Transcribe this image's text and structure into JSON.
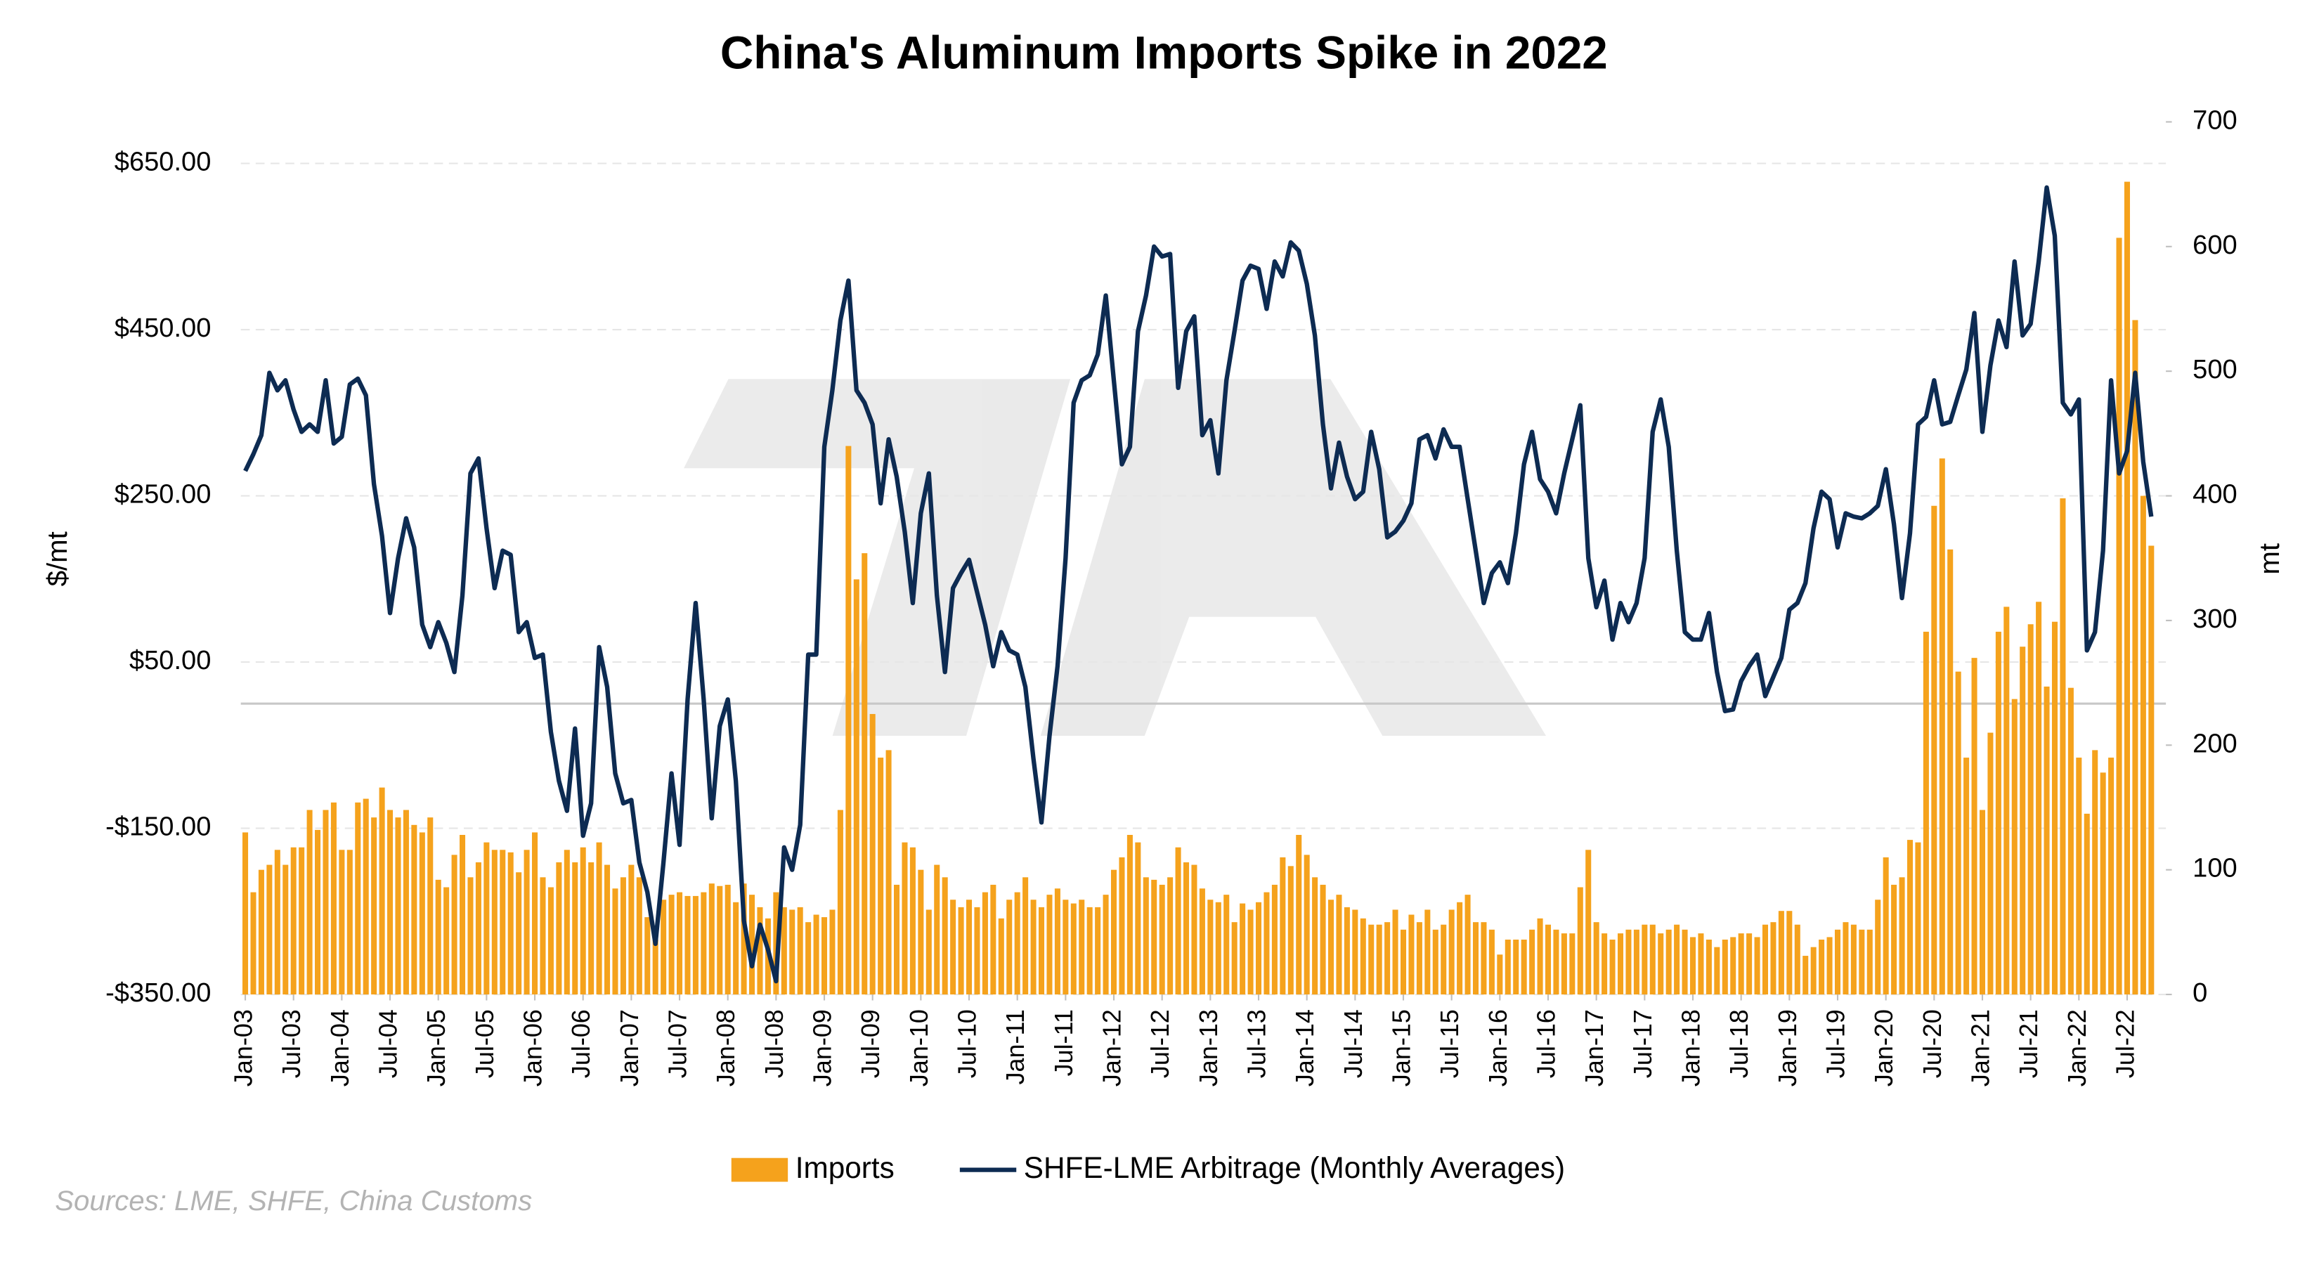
{
  "chart_data": {
    "type": "bar",
    "title": "China's Aluminum Imports Spike in 2022",
    "source": "Sources: LME, SHFE, China Customs",
    "ylabel": "$/mt",
    "y2label": "mt",
    "ylim": [
      -350,
      700
    ],
    "yticks": [
      {
        "value": -350,
        "label": "-$350.00"
      },
      {
        "value": -150,
        "label": "-$150.00"
      },
      {
        "value": 50,
        "label": "$50.00"
      },
      {
        "value": 250,
        "label": "$250.00"
      },
      {
        "value": 450,
        "label": "$450.00"
      },
      {
        "value": 650,
        "label": "$650.00"
      }
    ],
    "y2lim": [
      0,
      700
    ],
    "y2ticks": [
      0,
      100,
      200,
      300,
      400,
      500,
      600,
      700
    ],
    "grid": true,
    "legend": "bottom",
    "categories": [
      "Jan-03",
      null,
      null,
      null,
      null,
      null,
      "Jul-03",
      null,
      null,
      null,
      null,
      null,
      "Jan-04",
      null,
      null,
      null,
      null,
      null,
      "Jul-04",
      null,
      null,
      null,
      null,
      null,
      "Jan-05",
      null,
      null,
      null,
      null,
      null,
      "Jul-05",
      null,
      null,
      null,
      null,
      null,
      "Jan-06",
      null,
      null,
      null,
      null,
      null,
      "Jul-06",
      null,
      null,
      null,
      null,
      null,
      "Jan-07",
      null,
      null,
      null,
      null,
      null,
      "Jul-07",
      null,
      null,
      null,
      null,
      null,
      "Jan-08",
      null,
      null,
      null,
      null,
      null,
      "Jul-08",
      null,
      null,
      null,
      null,
      null,
      "Jan-09",
      null,
      null,
      null,
      null,
      null,
      "Jul-09",
      null,
      null,
      null,
      null,
      null,
      "Jan-10",
      null,
      null,
      null,
      null,
      null,
      "Jul-10",
      null,
      null,
      null,
      null,
      null,
      "Jan-11",
      null,
      null,
      null,
      null,
      null,
      "Jul-11",
      null,
      null,
      null,
      null,
      null,
      "Jan-12",
      null,
      null,
      null,
      null,
      null,
      "Jul-12",
      null,
      null,
      null,
      null,
      null,
      "Jan-13",
      null,
      null,
      null,
      null,
      null,
      "Jul-13",
      null,
      null,
      null,
      null,
      null,
      "Jan-14",
      null,
      null,
      null,
      null,
      null,
      "Jul-14",
      null,
      null,
      null,
      null,
      null,
      "Jan-15",
      null,
      null,
      null,
      null,
      null,
      "Jul-15",
      null,
      null,
      null,
      null,
      null,
      "Jan-16",
      null,
      null,
      null,
      null,
      null,
      "Jul-16",
      null,
      null,
      null,
      null,
      null,
      "Jan-17",
      null,
      null,
      null,
      null,
      null,
      "Jul-17",
      null,
      null,
      null,
      null,
      null,
      "Jan-18",
      null,
      null,
      null,
      null,
      null,
      "Jul-18",
      null,
      null,
      null,
      null,
      null,
      "Jan-19",
      null,
      null,
      null,
      null,
      null,
      "Jul-19",
      null,
      null,
      null,
      null,
      null,
      "Jan-20",
      null,
      null,
      null,
      null,
      null,
      "Jul-20",
      null,
      null,
      null,
      null,
      null,
      "Jan-21",
      null,
      null,
      null,
      null,
      null,
      "Jul-21",
      null,
      null,
      null,
      null,
      null,
      "Jan-22",
      null,
      null,
      null,
      null,
      null,
      "Jul-22",
      null,
      null,
      null
    ],
    "series": [
      {
        "name": "Imports",
        "type": "bar",
        "axis": "y2",
        "color": "#f5a21c",
        "values": [
          130,
          82,
          100,
          104,
          116,
          104,
          118,
          118,
          148,
          132,
          148,
          154,
          116,
          116,
          154,
          157,
          142,
          166,
          148,
          142,
          148,
          136,
          130,
          142,
          92,
          86,
          112,
          128,
          94,
          106,
          122,
          116,
          116,
          114,
          98,
          116,
          130,
          94,
          86,
          106,
          116,
          106,
          118,
          106,
          122,
          104,
          85,
          94,
          104,
          94,
          62,
          44,
          76,
          80,
          82,
          79,
          79,
          82,
          89,
          87,
          88,
          74,
          89,
          80,
          70,
          61,
          82,
          70,
          68,
          70,
          58,
          64,
          62,
          68,
          148,
          440,
          333,
          354,
          225,
          190,
          196,
          88,
          122,
          118,
          100,
          68,
          104,
          94,
          76,
          70,
          76,
          70,
          82,
          88,
          61,
          76,
          82,
          94,
          76,
          70,
          80,
          85,
          76,
          73,
          76,
          70,
          70,
          80,
          100,
          110,
          128,
          122,
          94,
          92,
          88,
          94,
          118,
          106,
          104,
          85,
          76,
          74,
          80,
          58,
          73,
          68,
          74,
          82,
          88,
          110,
          103,
          128,
          112,
          94,
          88,
          76,
          80,
          70,
          68,
          61,
          56,
          56,
          58,
          68,
          52,
          64,
          58,
          68,
          52,
          56,
          68,
          74,
          80,
          58,
          58,
          52,
          32,
          44,
          44,
          44,
          52,
          61,
          56,
          52,
          49,
          49,
          86,
          116,
          58,
          49,
          44,
          49,
          52,
          52,
          56,
          56,
          49,
          52,
          56,
          52,
          46,
          49,
          44,
          38,
          44,
          46,
          49,
          49,
          46,
          56,
          58,
          67,
          67,
          56,
          31,
          38,
          44,
          46,
          52,
          58,
          56,
          52,
          52,
          76,
          110,
          88,
          94,
          124,
          122,
          291,
          392,
          430,
          357,
          259,
          190,
          270,
          148,
          210,
          291,
          311,
          237,
          279,
          297,
          315,
          247,
          299,
          398,
          246,
          190,
          145,
          196,
          178,
          190,
          607,
          652,
          541,
          400,
          360
        ]
      },
      {
        "name": "SHFE-LME Arbitrage (Monthly Averages)",
        "type": "line",
        "axis": "y",
        "color": "#0d2b52",
        "values": [
          280,
          300,
          323,
          398,
          377,
          389,
          354,
          327,
          336,
          327,
          389,
          313,
          321,
          384,
          391,
          371,
          264,
          202,
          109,
          175,
          223,
          188,
          95,
          68,
          98,
          73,
          38,
          130,
          277,
          295,
          211,
          139,
          184,
          179,
          86,
          98,
          55,
          59,
          -34,
          -93,
          -129,
          -30,
          -159,
          -120,
          68,
          20,
          -84,
          -120,
          -116,
          -191,
          -227,
          -289,
          -191,
          -84,
          -170,
          5,
          121,
          5,
          -138,
          -27,
          5,
          -93,
          -261,
          -316,
          -266,
          -296,
          -334,
          -173,
          -200,
          -146,
          59,
          59,
          309,
          377,
          461,
          509,
          377,
          362,
          336,
          241,
          318,
          273,
          207,
          121,
          229,
          277,
          130,
          38,
          139,
          157,
          173,
          134,
          95,
          45,
          86,
          64,
          59,
          20,
          -66,
          -143,
          -39,
          45,
          175,
          362,
          389,
          395,
          420,
          491,
          389,
          288,
          309,
          448,
          491,
          550,
          538,
          541,
          380,
          448,
          466,
          323,
          341,
          277,
          389,
          448,
          509,
          527,
          523,
          475,
          532,
          514,
          555,
          545,
          505,
          443,
          336,
          259,
          314,
          273,
          246,
          255,
          327,
          282,
          200,
          207,
          220,
          241,
          318,
          323,
          295,
          330,
          309,
          309,
          246,
          184,
          121,
          157,
          170,
          145,
          205,
          288,
          327,
          270,
          255,
          229,
          277,
          318,
          359,
          175,
          116,
          148,
          77,
          121,
          98,
          121,
          175,
          327,
          366,
          309,
          184,
          86,
          77,
          77,
          109,
          38,
          -9,
          -7,
          27,
          45,
          59,
          9,
          32,
          55,
          113,
          121,
          145,
          211,
          255,
          246,
          188,
          229,
          225,
          223,
          229,
          238,
          282,
          216,
          127,
          205,
          336,
          345,
          389,
          336,
          339,
          371,
          402,
          470,
          327,
          407,
          461,
          429,
          532,
          443,
          457,
          532,
          621,
          563,
          362,
          348,
          366,
          64,
          86,
          184,
          389,
          277,
          304,
          398,
          291,
          225
        ]
      }
    ]
  }
}
